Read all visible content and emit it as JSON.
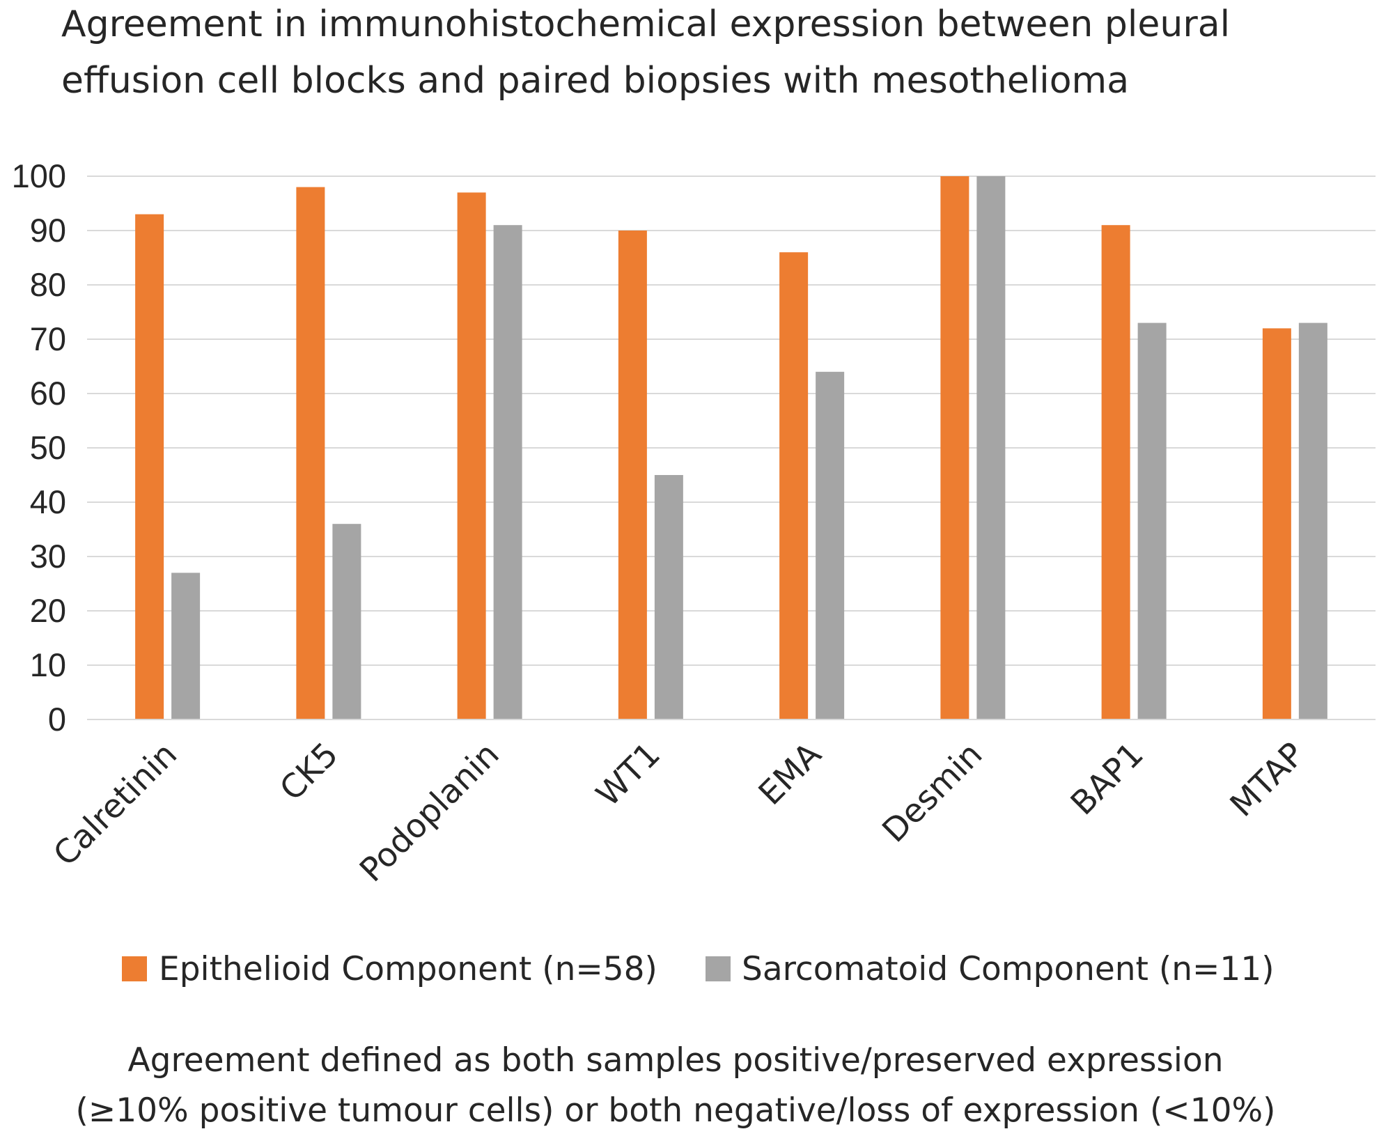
{
  "chart_data": {
    "type": "bar",
    "title": [
      "Agreement in immunohistochemical expression between pleural",
      "effusion cell blocks and paired biopsies with mesothelioma"
    ],
    "categories": [
      "Calretinin",
      "CK5",
      "Podoplanin",
      "WT1",
      "EMA",
      "Desmin",
      "BAP1",
      "MTAP"
    ],
    "series": [
      {
        "name": "Epithelioid Component (n=58)",
        "color": "#ED7D31",
        "values": [
          93,
          98,
          97,
          90,
          86,
          100,
          91,
          72
        ]
      },
      {
        "name": "Sarcomatoid Component (n=11)",
        "color": "#A5A5A5",
        "values": [
          27,
          36,
          91,
          45,
          64,
          100,
          73,
          73
        ]
      }
    ],
    "ylim": [
      0,
      100
    ],
    "yticks": [
      0,
      10,
      20,
      30,
      40,
      50,
      60,
      70,
      80,
      90,
      100
    ],
    "grid": true,
    "gridline_color": "#D9D9D9",
    "legend_position": "bottom",
    "xlabel": "",
    "ylabel": "",
    "footnote": [
      "Agreement defined as both samples positive/preserved expression",
      "(≥10% positive tumour cells) or both negative/loss of expression (<10%)"
    ]
  }
}
